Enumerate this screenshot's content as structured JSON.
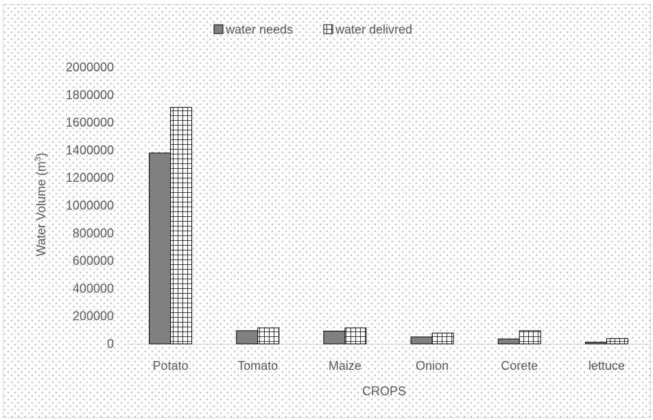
{
  "chart_data": {
    "type": "bar",
    "categories": [
      "Potato",
      "Tomato",
      "Maize",
      "Onion",
      "Corete",
      "lettuce"
    ],
    "series": [
      {
        "name": "water needs",
        "values": [
          1380000,
          95000,
          92000,
          50000,
          35000,
          12000
        ],
        "color": "#808080",
        "pattern": "solid"
      },
      {
        "name": "water delivred",
        "values": [
          1710000,
          115000,
          115000,
          78000,
          95000,
          38000
        ],
        "color": "#ffffff",
        "pattern": "grid"
      }
    ],
    "xlabel": "CROPS",
    "ylabel": "Water Volume  (m",
    "ylabel_sup": "3",
    "ylabel_close": ")",
    "ylim": [
      0,
      2000000
    ],
    "yticks": [
      "0",
      "200000",
      "400000",
      "600000",
      "800000",
      "1000000",
      "1200000",
      "1400000",
      "1600000",
      "1800000",
      "2000000"
    ],
    "legend_position": "top",
    "grid": false,
    "background": "dotted"
  }
}
